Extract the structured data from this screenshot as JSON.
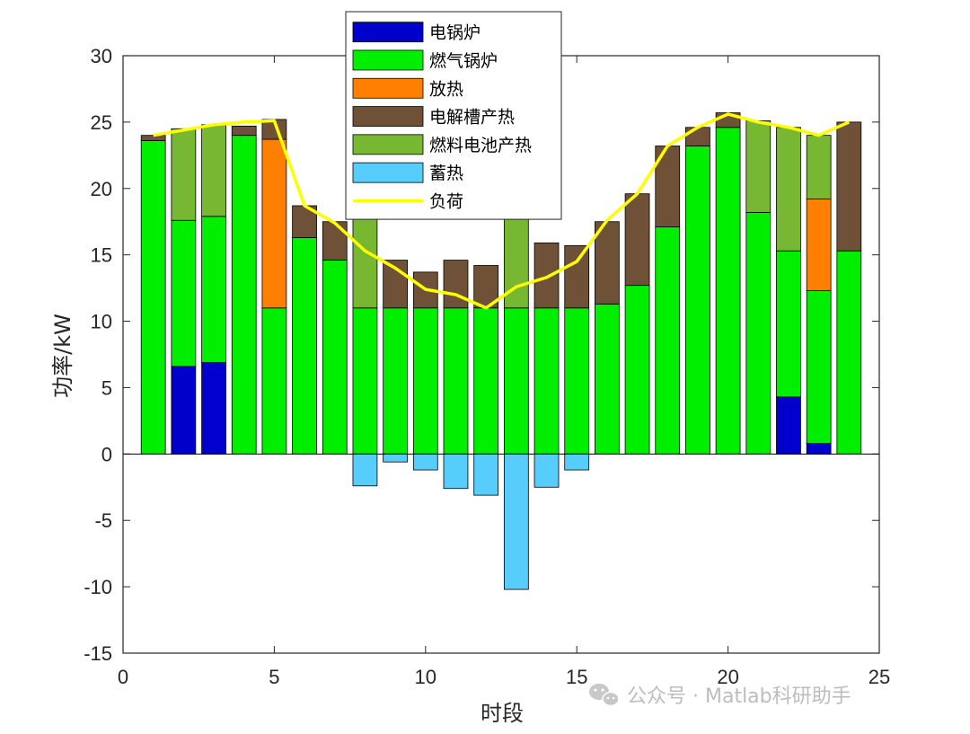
{
  "chart_data": {
    "type": "bar",
    "stacked": true,
    "xlabel": "时段",
    "ylabel": "功率/kW",
    "xlim": [
      0,
      25
    ],
    "ylim": [
      -15,
      30
    ],
    "xticks": [
      0,
      5,
      10,
      15,
      20,
      25
    ],
    "yticks": [
      -15,
      -10,
      -5,
      0,
      5,
      10,
      15,
      20,
      25,
      30
    ],
    "x": [
      1,
      2,
      3,
      4,
      5,
      6,
      7,
      8,
      9,
      10,
      11,
      12,
      13,
      14,
      15,
      16,
      17,
      18,
      19,
      20,
      21,
      22,
      23,
      24
    ],
    "legend_position": "top-center",
    "series": [
      {
        "name": "电锅炉",
        "color": "#0000cd",
        "values": [
          0,
          6.6,
          6.9,
          0,
          0,
          0,
          0,
          0,
          0,
          0,
          0,
          0,
          0,
          0,
          0,
          0,
          0,
          0,
          0,
          0,
          0,
          4.3,
          0.8,
          0
        ]
      },
      {
        "name": "燃气锅炉",
        "color": "#00ee00",
        "values": [
          23.6,
          11.0,
          11.0,
          24.0,
          11.0,
          16.3,
          14.6,
          11.0,
          11.0,
          11.0,
          11.0,
          11.0,
          11.0,
          11.0,
          11.0,
          11.3,
          12.7,
          17.1,
          23.2,
          24.6,
          18.2,
          11.0,
          11.5,
          15.3
        ]
      },
      {
        "name": "放热",
        "color": "#ff8000",
        "values": [
          0,
          0,
          0,
          0,
          12.7,
          0,
          0,
          0,
          0,
          0,
          0,
          0,
          0,
          0,
          0,
          0,
          0,
          0,
          0,
          0,
          0,
          0,
          6.9,
          0
        ]
      },
      {
        "name": "电解槽产热",
        "color": "#6e5136",
        "values": [
          0.4,
          0,
          0,
          0.7,
          1.5,
          2.4,
          2.9,
          0,
          3.6,
          2.7,
          3.6,
          3.2,
          0,
          4.9,
          4.7,
          6.2,
          6.9,
          6.1,
          1.4,
          1.1,
          0,
          0,
          0,
          9.7
        ]
      },
      {
        "name": "燃料电池产热",
        "color": "#77b731",
        "values": [
          0,
          6.9,
          6.9,
          0,
          0,
          0,
          0,
          6.9,
          0,
          0,
          0,
          0,
          7.3,
          0,
          0,
          0,
          0,
          0,
          0,
          0,
          6.9,
          9.3,
          4.8,
          0
        ]
      },
      {
        "name": "蓄热",
        "color": "#56cdfa",
        "values": [
          0,
          0,
          0,
          0,
          0,
          0,
          0,
          -2.4,
          -0.6,
          -1.2,
          -2.6,
          -3.1,
          -10.2,
          -2.5,
          -1.2,
          0,
          0,
          0,
          0,
          0,
          0,
          0,
          0,
          0
        ]
      }
    ],
    "line": {
      "name": "负荷",
      "color": "#ffff00",
      "values": [
        24.0,
        24.4,
        24.8,
        25.0,
        25.1,
        18.7,
        17.4,
        15.3,
        14.0,
        12.4,
        12.0,
        11.0,
        12.6,
        13.3,
        14.5,
        17.6,
        19.6,
        23.2,
        24.6,
        25.6,
        25.0,
        24.6,
        24.0,
        25.0
      ]
    }
  },
  "watermark": {
    "text": "公众号 · Matlab科研助手",
    "icon": "wechat-icon"
  }
}
